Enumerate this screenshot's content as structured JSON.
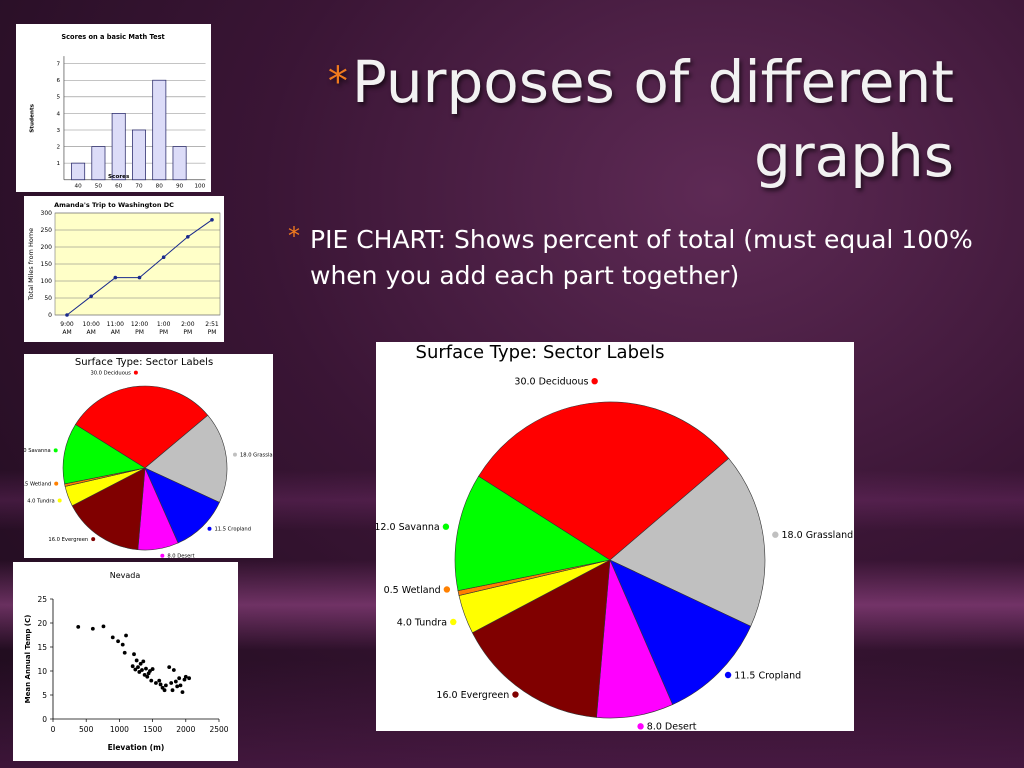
{
  "slide": {
    "title_line1": "Purposes of different",
    "title_line2": "graphs",
    "bullet_text": "PIE CHART: Shows percent of total (must equal 100% when you add each part together)",
    "accent_color": "#f07a1e"
  },
  "chart_data": [
    {
      "type": "bar",
      "title": "Scores on a basic Math Test",
      "xlabel": "Scores",
      "ylabel": "Students",
      "categories": [
        "40",
        "50",
        "60",
        "70",
        "80",
        "90"
      ],
      "values": [
        1,
        2,
        4,
        3,
        6,
        2
      ],
      "x_tick_labels": [
        "40",
        "50",
        "60",
        "70",
        "80",
        "90",
        "100"
      ],
      "ylim": [
        0,
        7
      ],
      "y_ticks": [
        1,
        2,
        3,
        4,
        5,
        6,
        7
      ],
      "bar_color": "#dcdcf8",
      "grid": true
    },
    {
      "type": "line",
      "title": "Amanda's Trip to Washington DC",
      "ylabel": "Total Miles from Home",
      "x": [
        "9:00 AM",
        "10:00 AM",
        "11:00 AM",
        "12:00 PM",
        "1:00 PM",
        "2:00 PM",
        "2:51 PM"
      ],
      "y": [
        0,
        55,
        110,
        110,
        170,
        230,
        280
      ],
      "ylim": [
        0,
        300
      ],
      "y_ticks": [
        0,
        50,
        100,
        150,
        200,
        250,
        300
      ],
      "background_color": "#ffffc8",
      "line_color": "#1a2a8c",
      "grid": true
    },
    {
      "type": "pie",
      "title": "Surface Type: Sector Labels",
      "slices": [
        {
          "label": "Deciduous",
          "value_text": "30.0",
          "value": 30.0,
          "color": "#ff0000"
        },
        {
          "label": "Grassland",
          "value_text": "18.0",
          "value": 18.0,
          "color": "#c0c0c0"
        },
        {
          "label": "Cropland",
          "value_text": "11.5",
          "value": 11.5,
          "color": "#0000ff"
        },
        {
          "label": "Desert",
          "value_text": "8.0",
          "value": 8.0,
          "color": "#ff00ff"
        },
        {
          "label": "Evergreen",
          "value_text": "16.0",
          "value": 16.0,
          "color": "#800000"
        },
        {
          "label": "Tundra",
          "value_text": "4.0",
          "value": 4.0,
          "color": "#ffff00"
        },
        {
          "label": "Wetland",
          "value_text": "0.5",
          "value": 0.5,
          "color": "#ff8000"
        },
        {
          "label": "Savanna",
          "value_text": "12.0",
          "value": 12.0,
          "color": "#00ff00"
        }
      ]
    },
    {
      "type": "scatter",
      "title": "Nevada",
      "xlabel": "Elevation (m)",
      "ylabel": "Mean Annual Temp (C)",
      "xlim": [
        0,
        2500
      ],
      "ylim": [
        0,
        25
      ],
      "x_ticks": [
        0,
        500,
        1000,
        1500,
        2000,
        2500
      ],
      "y_ticks": [
        0,
        5,
        10,
        15,
        20,
        25
      ],
      "points": [
        [
          380,
          19.2
        ],
        [
          600,
          18.8
        ],
        [
          760,
          19.3
        ],
        [
          900,
          17.0
        ],
        [
          980,
          16.2
        ],
        [
          1050,
          15.5
        ],
        [
          1080,
          13.8
        ],
        [
          1100,
          17.4
        ],
        [
          1200,
          11.0
        ],
        [
          1220,
          13.5
        ],
        [
          1240,
          10.3
        ],
        [
          1260,
          12.2
        ],
        [
          1280,
          10.8
        ],
        [
          1300,
          9.8
        ],
        [
          1320,
          11.5
        ],
        [
          1340,
          10.2
        ],
        [
          1360,
          12.0
        ],
        [
          1380,
          9.2
        ],
        [
          1400,
          10.5
        ],
        [
          1420,
          8.8
        ],
        [
          1440,
          9.5
        ],
        [
          1460,
          10.0
        ],
        [
          1480,
          8.0
        ],
        [
          1500,
          10.4
        ],
        [
          1550,
          7.5
        ],
        [
          1600,
          8.0
        ],
        [
          1620,
          7.2
        ],
        [
          1650,
          6.5
        ],
        [
          1680,
          6.0
        ],
        [
          1700,
          7.0
        ],
        [
          1750,
          10.8
        ],
        [
          1780,
          7.5
        ],
        [
          1800,
          6.0
        ],
        [
          1820,
          10.2
        ],
        [
          1850,
          7.8
        ],
        [
          1870,
          6.8
        ],
        [
          1900,
          8.5
        ],
        [
          1920,
          7.0
        ],
        [
          1950,
          5.6
        ],
        [
          1980,
          8.2
        ],
        [
          2000,
          8.8
        ],
        [
          2050,
          8.5
        ]
      ]
    }
  ]
}
